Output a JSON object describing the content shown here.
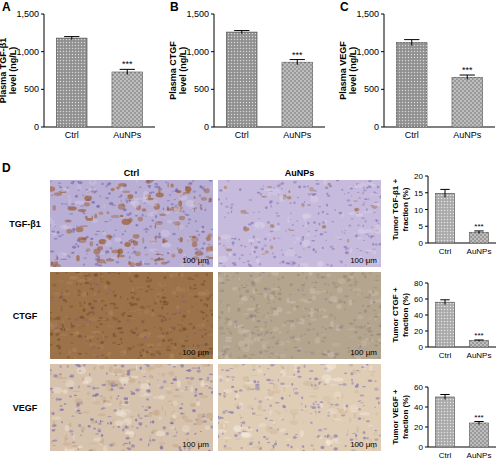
{
  "panel_labels": [
    "A",
    "B",
    "C",
    "D"
  ],
  "micrographs": {
    "columns": [
      "Ctrl",
      "AuNPs"
    ],
    "rows": [
      "TGF-β1",
      "CTGF",
      "VEGF"
    ],
    "scale_bar": "100 μm"
  },
  "chart_data": [
    {
      "type": "bar",
      "y_label": [
        "Plasma TGF-β1",
        "level (ng/L)"
      ],
      "categories": [
        "Ctrl",
        "AuNPs"
      ],
      "values": [
        1180,
        730
      ],
      "errors": [
        20,
        35
      ],
      "significance": [
        null,
        "***"
      ],
      "colors": [
        "#9a9a9a",
        "#9a9a9a"
      ],
      "ylim": [
        0,
        1500
      ],
      "yticks": [
        0,
        500,
        {
          "value": 1000,
          "label": "1,000"
        },
        {
          "value": 1500,
          "label": "1,500"
        }
      ]
    },
    {
      "type": "bar",
      "y_label": [
        "Plasma CTGF",
        "level (ng/L)"
      ],
      "categories": [
        "Ctrl",
        "AuNPs"
      ],
      "values": [
        1260,
        860
      ],
      "errors": [
        20,
        35
      ],
      "significance": [
        null,
        "***"
      ],
      "colors": [
        "#9a9a9a",
        "#9a9a9a"
      ],
      "ylim": [
        0,
        1500
      ],
      "yticks": [
        0,
        500,
        {
          "value": 1000,
          "label": "1,000"
        },
        {
          "value": 1500,
          "label": "1,500"
        }
      ]
    },
    {
      "type": "bar",
      "y_label": [
        "Plasma VEGF",
        "level (ng/L)"
      ],
      "categories": [
        "Ctrl",
        "AuNPs"
      ],
      "values": [
        1120,
        660
      ],
      "errors": [
        40,
        30
      ],
      "significance": [
        null,
        "***"
      ],
      "colors": [
        "#9a9a9a",
        "#9a9a9a"
      ],
      "ylim": [
        0,
        1500
      ],
      "yticks": [
        0,
        500,
        {
          "value": 1000,
          "label": "1,000"
        },
        {
          "value": 1500,
          "label": "1,500"
        }
      ]
    },
    {
      "type": "bar",
      "y_label": [
        "Tumor TGF-β1 +",
        "fraction (%)"
      ],
      "categories": [
        "Ctrl",
        "AuNPs"
      ],
      "values": [
        14.8,
        3.2
      ],
      "errors": [
        1.2,
        0.4
      ],
      "significance": [
        null,
        "***"
      ],
      "colors": [
        "#b4b4b4",
        "#9a9a9a"
      ],
      "ylim": [
        0,
        20
      ],
      "yticks": [
        0,
        5,
        10,
        15,
        20
      ]
    },
    {
      "type": "bar",
      "y_label": [
        "Tumor CTGF +",
        "fraction (%)"
      ],
      "categories": [
        "Ctrl",
        "AuNPs"
      ],
      "values": [
        56,
        8
      ],
      "errors": [
        3,
        0.8
      ],
      "significance": [
        null,
        "***"
      ],
      "colors": [
        "#b4b4b4",
        "#9a9a9a"
      ],
      "ylim": [
        0,
        80
      ],
      "yticks": [
        0,
        20,
        40,
        60,
        80
      ]
    },
    {
      "type": "bar",
      "y_label": [
        "Tumor VEGF +",
        "fraction (%)"
      ],
      "categories": [
        "Ctrl",
        "AuNPs"
      ],
      "values": [
        50,
        24
      ],
      "errors": [
        2.5,
        1.5
      ],
      "significance": [
        null,
        "***"
      ],
      "colors": [
        "#b4b4b4",
        "#9a9a9a"
      ],
      "ylim": [
        0,
        60
      ],
      "yticks": [
        0,
        20,
        40,
        60
      ]
    }
  ]
}
